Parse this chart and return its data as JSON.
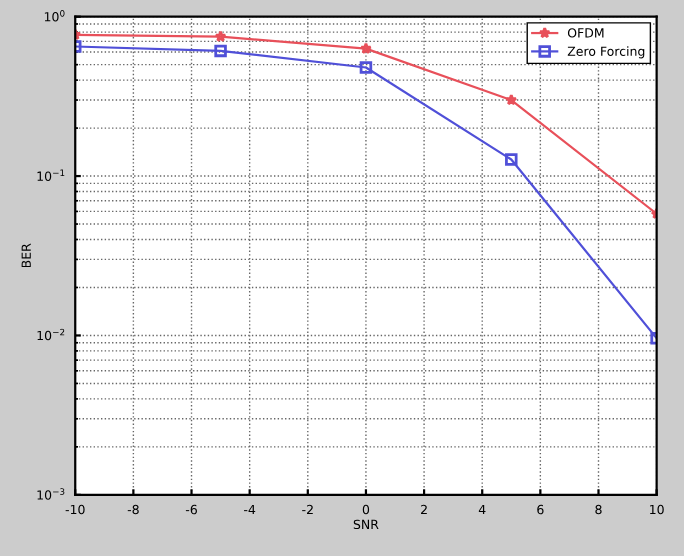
{
  "chart_data": {
    "type": "line",
    "xlabel": "SNR",
    "ylabel": "BER",
    "x": [
      -10,
      -5,
      0,
      5,
      10
    ],
    "series": [
      {
        "name": "OFDM",
        "color": "#e8505a",
        "values": [
          0.77,
          0.75,
          0.63,
          0.3,
          0.058
        ],
        "marker": "star"
      },
      {
        "name": "Zero Forcing",
        "color": "#5050d8",
        "values": [
          0.65,
          0.61,
          0.48,
          0.127,
          0.0096
        ],
        "marker": "square"
      }
    ],
    "log": "y",
    "xlim": [
      -10,
      10
    ],
    "xticks": [
      -10,
      -8,
      -6,
      -4,
      -2,
      0,
      2,
      4,
      6,
      8,
      10
    ],
    "ylim": [
      0.001,
      1
    ],
    "yticks": [
      {
        "value": 0.001,
        "label": "10$^{−3}$"
      },
      {
        "value": 0.01,
        "label": "10$^{−2}$"
      },
      {
        "value": 0.1,
        "label": "10$^{−1}$"
      },
      {
        "value": 1,
        "label": "10$^{0}$"
      }
    ],
    "grid": true,
    "legend": "top right",
    "line_style": "solid"
  }
}
